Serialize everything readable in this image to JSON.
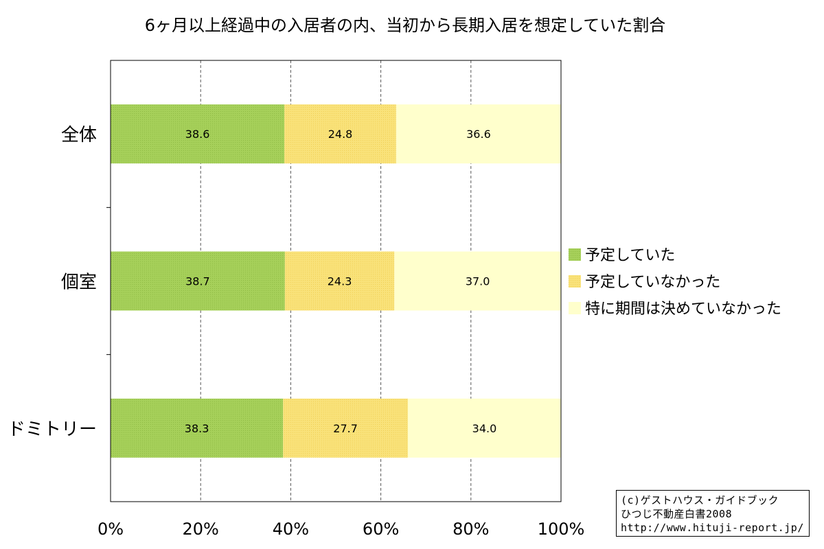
{
  "chart_data": {
    "type": "bar",
    "orientation": "horizontal",
    "stacked": true,
    "title": "6ヶ月以上経過中の入居者の内、当初から長期入居を想定していた割合",
    "categories": [
      "全体",
      "個室",
      "ドミトリー"
    ],
    "series": [
      {
        "name": "予定していた",
        "values": [
          38.6,
          38.7,
          38.3
        ],
        "color": "#a6d05a"
      },
      {
        "name": "予定していなかった",
        "values": [
          24.8,
          24.3,
          27.7
        ],
        "color": "#f9e27a"
      },
      {
        "name": "特に期間は決めていなかった",
        "values": [
          36.6,
          37.0,
          34.0
        ],
        "color": "#ffffcc"
      }
    ],
    "value_labels": [
      [
        "38.6",
        "24.8",
        "36.6"
      ],
      [
        "38.7",
        "24.3",
        "37.0"
      ],
      [
        "38.3",
        "27.7",
        "34.0"
      ]
    ],
    "xlim": [
      0,
      100
    ],
    "xticks": [
      "0%",
      "20%",
      "40%",
      "60%",
      "80%",
      "100%"
    ],
    "grid": "vertical-dashed",
    "legend_position": "right"
  },
  "credit": {
    "line1": "(c)ゲストハウス・ガイドブック",
    "line2": "ひつじ不動産白書2008",
    "line3": "http://www.hituji-report.jp/"
  }
}
